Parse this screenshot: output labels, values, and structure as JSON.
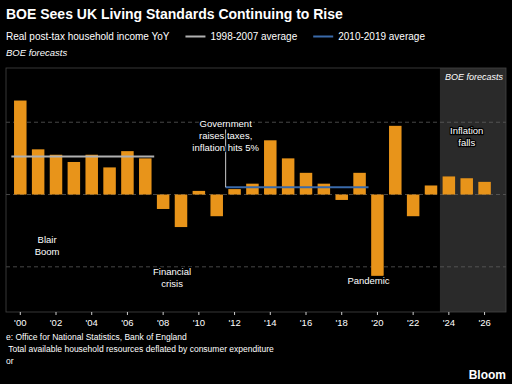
{
  "chart_data": {
    "type": "bar",
    "title": "BOE Sees UK Living Standards Continuing to Rise",
    "x": [
      2000,
      2001,
      2002,
      2003,
      2004,
      2005,
      2006,
      2007,
      2008,
      2009,
      2010,
      2011,
      2012,
      2013,
      2014,
      2015,
      2016,
      2017,
      2018,
      2019,
      2020,
      2021,
      2022,
      2023,
      2024,
      2025,
      2026
    ],
    "series": [
      {
        "name": "Real post-tax household income YoY",
        "color": "#E8941A",
        "values": [
          5.2,
          2.5,
          2.2,
          1.8,
          2.2,
          1.5,
          2.4,
          2.0,
          -0.8,
          -1.8,
          0.2,
          -1.2,
          0.3,
          0.6,
          3.0,
          2.0,
          1.2,
          0.6,
          -0.3,
          1.2,
          -4.5,
          3.8,
          -1.2,
          0.5,
          1.0,
          0.9,
          0.7
        ]
      },
      {
        "name": "1998-2007 average",
        "type": "line",
        "color": "#b0b0b0",
        "x": [
          1999.5,
          2007.5
        ],
        "values": [
          2.1,
          2.1
        ]
      },
      {
        "name": "2010-2019 average",
        "type": "line",
        "color": "#3a6aaa",
        "x": [
          2011.5,
          2019.5
        ],
        "values": [
          0.4,
          0.4
        ]
      }
    ],
    "xlim": [
      1999.2,
      2027.2
    ],
    "xticks": [
      {
        "value": 2000,
        "label": "'00"
      },
      {
        "value": 2002,
        "label": "'02"
      },
      {
        "value": 2004,
        "label": "'04"
      },
      {
        "value": 2006,
        "label": "'06"
      },
      {
        "value": 2008,
        "label": "'08"
      },
      {
        "value": 2010,
        "label": "'10"
      },
      {
        "value": 2012,
        "label": "'12"
      },
      {
        "value": 2014,
        "label": "'14"
      },
      {
        "value": 2016,
        "label": "'16"
      },
      {
        "value": 2018,
        "label": "'18"
      },
      {
        "value": 2020,
        "label": "'20"
      },
      {
        "value": 2022,
        "label": "'22"
      },
      {
        "value": 2024,
        "label": "'24"
      },
      {
        "value": 2026,
        "label": "'26"
      }
    ],
    "ylim": [
      -6.5,
      7.0
    ],
    "yticks": [
      -4,
      0,
      4
    ],
    "grid": true,
    "tick_labels": "x",
    "legend": "top",
    "annotations": [
      {
        "text": "Blair\nBoom",
        "x": 2001.5,
        "y": -2.2
      },
      {
        "text": "Financial\ncrisis",
        "x": 2008.5,
        "y": -4.0
      },
      {
        "text": "Government\nraises taxes,\ninflation hits 5%",
        "x": 2011.5,
        "y": 4.2,
        "connector_y": [
          0.4,
          3.6
        ]
      },
      {
        "text": "Pandemic",
        "x": 2019.5,
        "y": -4.5
      },
      {
        "text": "Inflation\nfalls",
        "x": 2025.0,
        "y": 3.8
      }
    ],
    "shaded": {
      "x_start": 2023.5,
      "label": "BOE forecasts",
      "color": "#2a2a2a"
    },
    "notes": [
      "e: Office for National Statistics, Bank of England",
      " Total available household resources deflated by consumer expenditure",
      "or"
    ],
    "credit": "Bloom"
  }
}
